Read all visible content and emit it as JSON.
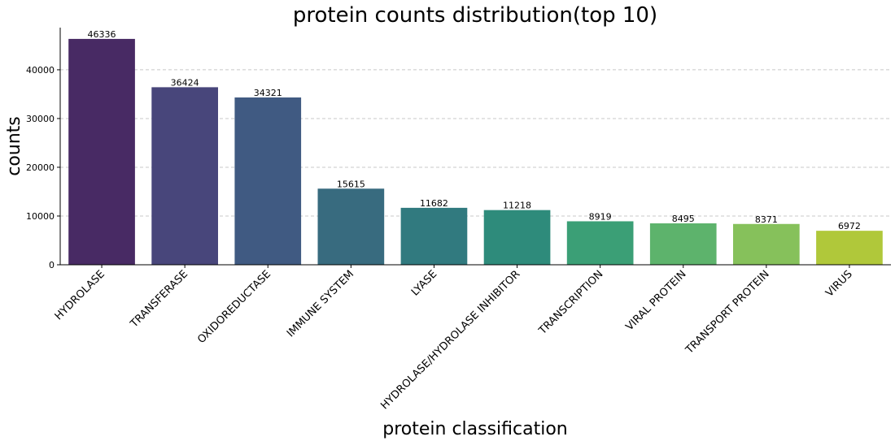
{
  "chart_data": {
    "type": "bar",
    "title": "protein counts distribution(top 10)",
    "xlabel": "protein classification",
    "ylabel": "counts",
    "categories": [
      "HYDROLASE",
      "TRANSFERASE",
      "OXIDOREDUCTASE",
      "IMMUNE SYSTEM",
      "LYASE",
      "HYDROLASE/HYDROLASE INHIBITOR",
      "TRANSCRIPTION",
      "VIRAL PROTEIN",
      "TRANSPORT PROTEIN",
      "VIRUS"
    ],
    "values": [
      46336,
      36424,
      34321,
      15615,
      11682,
      11218,
      8919,
      8495,
      8371,
      6972
    ],
    "data_labels": [
      "46336",
      "36424",
      "34321",
      "15615",
      "11682",
      "11218",
      "8919",
      "8495",
      "8371",
      "6972"
    ],
    "colors": [
      "#482a64",
      "#48467b",
      "#405a82",
      "#386b7f",
      "#317a7f",
      "#2e8b7b",
      "#3b9f76",
      "#5db36c",
      "#86c15b",
      "#b0c83a"
    ],
    "yticks": [
      0,
      10000,
      20000,
      30000,
      40000
    ],
    "ytick_labels": [
      "0",
      "10000",
      "20000",
      "30000",
      "40000"
    ],
    "ylim": [
      0,
      48652
    ],
    "grid": "horizontal dashed"
  }
}
